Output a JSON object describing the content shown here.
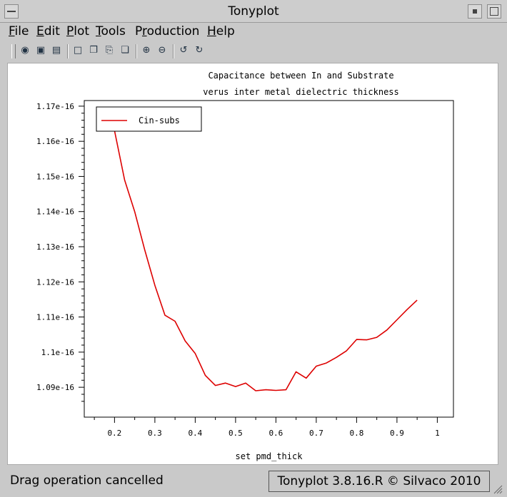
{
  "window": {
    "title": "Tonyplot"
  },
  "menu": [
    {
      "pre": "",
      "u": "F",
      "post": "ile"
    },
    {
      "pre": "",
      "u": "E",
      "post": "dit"
    },
    {
      "pre": "",
      "u": "P",
      "post": "lot"
    },
    {
      "pre": "",
      "u": "T",
      "post": "ools"
    },
    {
      "pre": "P",
      "u": "r",
      "post": "oduction"
    },
    {
      "pre": "",
      "u": "H",
      "post": "elp"
    }
  ],
  "toolbar_icons": [
    "open-icon",
    "import-icon",
    "print-icon",
    "select-icon",
    "copy-icon",
    "paste-icon",
    "duplicate-icon",
    "zoom-in-icon",
    "zoom-out-icon",
    "undo-zoom-icon",
    "redo-zoom-icon"
  ],
  "status": {
    "message": "Drag operation cancelled",
    "version": "Tonyplot 3.8.16.R © Silvaco 2010"
  },
  "chart_data": {
    "type": "line",
    "title_line1": "Capacitance between In and Substrate",
    "title_line2": "verus inter metal dielectric thickness",
    "xlabel": "set pmd_thick",
    "ylabel": "",
    "xlim": [
      0.125,
      1.04
    ],
    "ylim": [
      1.0815e-16,
      1.1716e-16
    ],
    "xticks": [
      0.2,
      0.3,
      0.4,
      0.5,
      0.6,
      0.7,
      0.8,
      0.9,
      1
    ],
    "xtick_labels": [
      "0.2",
      "0.3",
      "0.4",
      "0.5",
      "0.6",
      "0.7",
      "0.8",
      "0.9",
      "1"
    ],
    "yticks": [
      1.09e-16,
      1.1e-16,
      1.11e-16,
      1.12e-16,
      1.13e-16,
      1.14e-16,
      1.15e-16,
      1.16e-16,
      1.17e-16
    ],
    "ytick_labels": [
      "1.09e-16",
      "1.1e-16",
      "1.11e-16",
      "1.12e-16",
      "1.13e-16",
      "1.14e-16",
      "1.15e-16",
      "1.16e-16",
      "1.17e-16"
    ],
    "legend_position": "top-left",
    "color": "#dd0000",
    "series": [
      {
        "name": "Cin-subs",
        "x": [
          0.2,
          0.225,
          0.25,
          0.275,
          0.3,
          0.325,
          0.35,
          0.375,
          0.4,
          0.425,
          0.45,
          0.475,
          0.5,
          0.525,
          0.55,
          0.575,
          0.6,
          0.625,
          0.65,
          0.675,
          0.7,
          0.725,
          0.75,
          0.775,
          0.8,
          0.825,
          0.85,
          0.875,
          0.9,
          0.925,
          0.95
        ],
        "y": [
          1.163e-16,
          1.149e-16,
          1.14e-16,
          1.129e-16,
          1.119e-16,
          1.1105e-16,
          1.1088e-16,
          1.1032e-16,
          1.0996e-16,
          1.0934e-16,
          1.0905e-16,
          1.0912e-16,
          1.0902e-16,
          1.0912e-16,
          1.089e-16,
          1.0893e-16,
          1.0891e-16,
          1.0893e-16,
          1.0944e-16,
          1.0926e-16,
          1.096e-16,
          1.0969e-16,
          1.0985e-16,
          1.1004e-16,
          1.1036e-16,
          1.1035e-16,
          1.1042e-16,
          1.1063e-16,
          1.1092e-16,
          1.1121e-16,
          1.1148e-16
        ]
      }
    ]
  }
}
